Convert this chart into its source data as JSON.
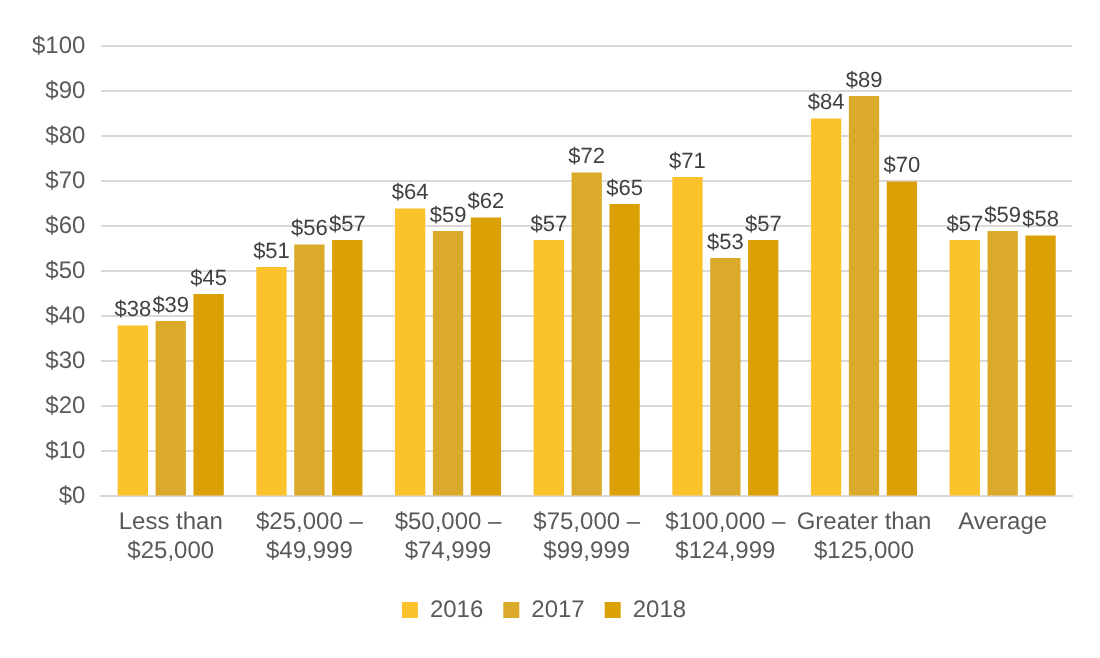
{
  "chart_data": {
    "type": "bar",
    "categories": [
      "Less than $25,000",
      "$25,000 – $49,999",
      "$50,000 – $74,999",
      "$75,000 – $99,999",
      "$100,000 – $124,999",
      "Greater than $125,000",
      "Average"
    ],
    "series": [
      {
        "name": "2016",
        "color": "#fcc22c",
        "values": [
          38,
          51,
          64,
          57,
          71,
          84,
          57
        ],
        "value_labels": [
          "$38",
          "$51",
          "$64",
          "$57",
          "$71",
          "$84",
          "$57"
        ]
      },
      {
        "name": "2017",
        "color": "#dcaa2a",
        "values": [
          39,
          56,
          59,
          72,
          53,
          89,
          59
        ],
        "value_labels": [
          "$39",
          "$56",
          "$59",
          "$72",
          "$53",
          "$89",
          "$59"
        ]
      },
      {
        "name": "2018",
        "color": "#dba005",
        "values": [
          45,
          57,
          62,
          65,
          57,
          70,
          58
        ],
        "value_labels": [
          "$45",
          "$57",
          "$62",
          "$65",
          "$57",
          "$70",
          "$58"
        ]
      }
    ],
    "ylim": [
      0,
      100
    ],
    "yticks": [
      {
        "value": 0,
        "label": "$0"
      },
      {
        "value": 10,
        "label": "$10"
      },
      {
        "value": 20,
        "label": "$20"
      },
      {
        "value": 30,
        "label": "$30"
      },
      {
        "value": 40,
        "label": "$40"
      },
      {
        "value": 50,
        "label": "$50"
      },
      {
        "value": 60,
        "label": "$60"
      },
      {
        "value": 70,
        "label": "$70"
      },
      {
        "value": 80,
        "label": "$80"
      },
      {
        "value": 90,
        "label": "$90"
      },
      {
        "value": 100,
        "label": "$100"
      }
    ],
    "grid": "y",
    "legend": "bottom"
  }
}
